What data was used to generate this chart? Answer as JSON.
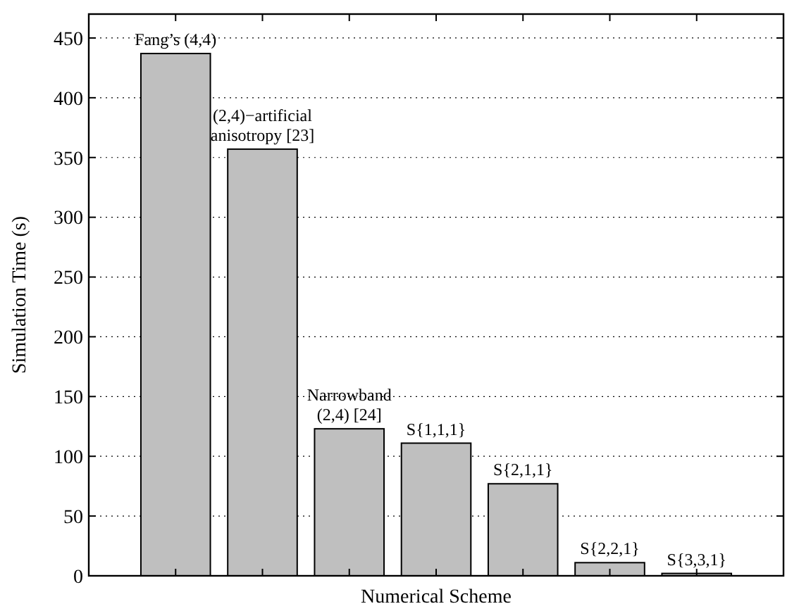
{
  "chart_data": {
    "type": "bar",
    "xlabel": "Numerical Scheme",
    "ylabel": "Simulation Time (s)",
    "categories": [
      "Fang’s (4,4)",
      "(2,4)−artificial\nanisotropy [23]",
      "Narrowband\n(2,4) [24]",
      "S{1,1,1}",
      "S{2,1,1}",
      "S{2,2,1}",
      "S{3,3,1}"
    ],
    "values": [
      437,
      357,
      123,
      111,
      77,
      11,
      2
    ],
    "color": "#bfbfbf",
    "ylim": [
      0,
      470
    ],
    "yticks": [
      0,
      50,
      100,
      150,
      200,
      250,
      300,
      350,
      400,
      450
    ],
    "grid": "y"
  }
}
